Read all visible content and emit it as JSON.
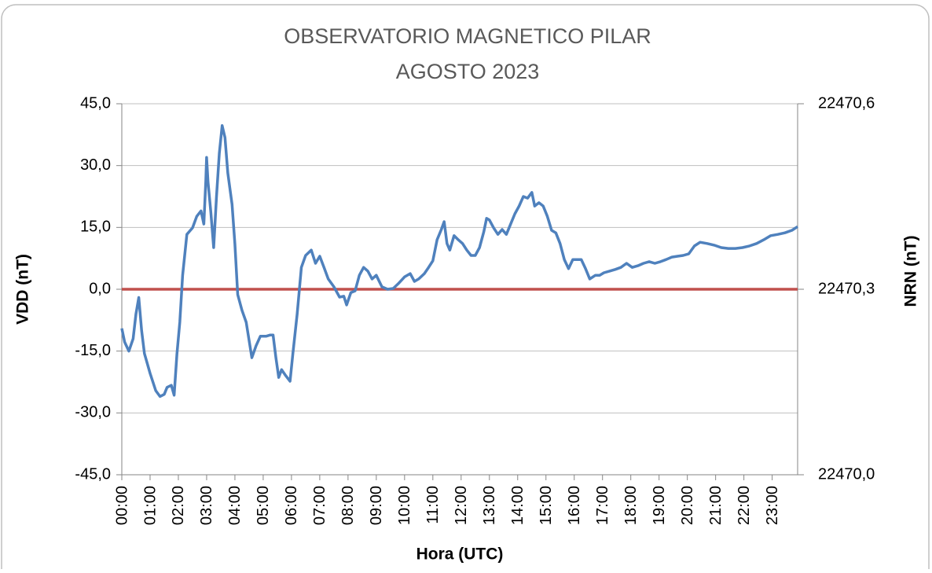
{
  "chart_data": {
    "type": "line",
    "title": [
      "OBSERVATORIO MAGNETICO PILAR",
      "AGOSTO 2023"
    ],
    "x_label": "Hora (UTC)",
    "y_label": "VDD (nT)",
    "y2_label": "NRN (nT)",
    "xlim": [
      0,
      23.9
    ],
    "xticks": [
      {
        "value": 0,
        "label": "00:00"
      },
      {
        "value": 1,
        "label": "01:00"
      },
      {
        "value": 2,
        "label": "02:00"
      },
      {
        "value": 3,
        "label": "03:00"
      },
      {
        "value": 4,
        "label": "04:00"
      },
      {
        "value": 5,
        "label": "05:00"
      },
      {
        "value": 6,
        "label": "06:00"
      },
      {
        "value": 7,
        "label": "07:00"
      },
      {
        "value": 8,
        "label": "08:00"
      },
      {
        "value": 9,
        "label": "09:00"
      },
      {
        "value": 10,
        "label": "10:00"
      },
      {
        "value": 11,
        "label": "11:00"
      },
      {
        "value": 12,
        "label": "12:00"
      },
      {
        "value": 13,
        "label": "13:00"
      },
      {
        "value": 14,
        "label": "14:00"
      },
      {
        "value": 15,
        "label": "15:00"
      },
      {
        "value": 16,
        "label": "16:00"
      },
      {
        "value": 17,
        "label": "17:00"
      },
      {
        "value": 18,
        "label": "18:00"
      },
      {
        "value": 19,
        "label": "19:00"
      },
      {
        "value": 20,
        "label": "20:00"
      },
      {
        "value": 21,
        "label": "21:00"
      },
      {
        "value": 22,
        "label": "22:00"
      },
      {
        "value": 23,
        "label": "23:00"
      }
    ],
    "ylim": [
      -45,
      45
    ],
    "yticks": [
      {
        "value": -45,
        "label": "-45,0"
      },
      {
        "value": -30,
        "label": "-30,0"
      },
      {
        "value": -15,
        "label": "-15,0"
      },
      {
        "value": 0,
        "label": "0,0"
      },
      {
        "value": 15,
        "label": "15,0"
      },
      {
        "value": 30,
        "label": "30,0"
      },
      {
        "value": 45,
        "label": "45,0"
      }
    ],
    "y2lim": [
      22470.0,
      22470.6
    ],
    "y2ticks": [
      {
        "value": 22470.0,
        "label": "22470,0"
      },
      {
        "value": 22470.3,
        "label": "22470,3"
      },
      {
        "value": 22470.6,
        "label": "22470,6"
      }
    ],
    "grid": true,
    "series": [
      {
        "name": "VDD",
        "color": "#4f81bd",
        "x": [
          0,
          0.1,
          0.25,
          0.4,
          0.5,
          0.6,
          0.7,
          0.8,
          1.0,
          1.2,
          1.35,
          1.5,
          1.6,
          1.75,
          1.85,
          1.95,
          2.05,
          2.15,
          2.3,
          2.5,
          2.65,
          2.8,
          2.9,
          2.97,
          3.0,
          3.05,
          3.15,
          3.25,
          3.35,
          3.45,
          3.55,
          3.65,
          3.75,
          3.9,
          4.0,
          4.1,
          4.25,
          4.4,
          4.6,
          4.75,
          4.9,
          5.1,
          5.25,
          5.35,
          5.45,
          5.55,
          5.65,
          5.8,
          5.95,
          6.05,
          6.2,
          6.35,
          6.5,
          6.7,
          6.85,
          7.0,
          7.15,
          7.3,
          7.5,
          7.7,
          7.85,
          7.95,
          8.1,
          8.25,
          8.4,
          8.55,
          8.7,
          8.85,
          9.0,
          9.2,
          9.4,
          9.6,
          9.8,
          10.0,
          10.2,
          10.35,
          10.5,
          10.7,
          10.85,
          11.0,
          11.15,
          11.3,
          11.4,
          11.5,
          11.6,
          11.75,
          11.9,
          12.05,
          12.2,
          12.35,
          12.5,
          12.65,
          12.8,
          12.9,
          13.0,
          13.15,
          13.3,
          13.45,
          13.6,
          13.75,
          13.9,
          14.05,
          14.2,
          14.35,
          14.5,
          14.6,
          14.75,
          14.9,
          15.05,
          15.2,
          15.35,
          15.5,
          15.65,
          15.8,
          15.95,
          16.1,
          16.25,
          16.4,
          16.55,
          16.75,
          16.9,
          17.05,
          17.25,
          17.45,
          17.65,
          17.85,
          18.05,
          18.25,
          18.45,
          18.65,
          18.85,
          19.05,
          19.25,
          19.45,
          19.65,
          19.85,
          20.05,
          20.25,
          20.45,
          20.7,
          20.95,
          21.2,
          21.45,
          21.7,
          21.95,
          22.2,
          22.45,
          22.7,
          22.95,
          23.2,
          23.45,
          23.7,
          23.9
        ],
        "values": [
          -9.5,
          -12.8,
          -15,
          -12,
          -6,
          -2,
          -10,
          -15.6,
          -20.4,
          -24.6,
          -26,
          -25.5,
          -23.8,
          -23.3,
          -25.7,
          -15.6,
          -8,
          3.4,
          13.3,
          14.9,
          17.7,
          19,
          15.8,
          26.3,
          32,
          26,
          18.7,
          10.1,
          22.5,
          33,
          39.7,
          36.8,
          28.2,
          20.6,
          11,
          -1.3,
          -5.1,
          -8,
          -16.6,
          -13.7,
          -11.4,
          -11.4,
          -11.1,
          -11.1,
          -16.6,
          -21.4,
          -19.5,
          -21,
          -22.3,
          -15.6,
          -6.1,
          5.3,
          8.2,
          9.5,
          6.3,
          8,
          5.3,
          2.5,
          0.6,
          -1.9,
          -1.7,
          -3.8,
          -0.8,
          -0.4,
          3.4,
          5.3,
          4.4,
          2.5,
          3.4,
          0.6,
          0,
          0.2,
          1.5,
          3,
          3.8,
          1.9,
          2.5,
          3.8,
          5.3,
          6.9,
          12,
          14.5,
          16.4,
          11.1,
          9.5,
          13,
          12,
          11.1,
          9.5,
          8.2,
          8.2,
          10.1,
          13.9,
          17.2,
          16.8,
          14.9,
          13.3,
          14.5,
          13.3,
          15.8,
          18.3,
          20.2,
          22.5,
          22.1,
          23.5,
          20.2,
          21,
          20.2,
          17.7,
          14.3,
          13.7,
          11.1,
          7.2,
          5,
          7.2,
          7.2,
          7.2,
          5,
          2.5,
          3.4,
          3.4,
          4,
          4.4,
          4.8,
          5.3,
          6.3,
          5.3,
          5.7,
          6.3,
          6.7,
          6.3,
          6.7,
          7.2,
          7.8,
          8,
          8.2,
          8.6,
          10.5,
          11.4,
          11.1,
          10.7,
          10.1,
          9.9,
          9.9,
          10.1,
          10.5,
          11.1,
          12,
          13,
          13.3,
          13.7,
          14.3,
          15.2
        ]
      },
      {
        "name": "NRN",
        "color": "#c0504d",
        "axis": "y2",
        "x": [
          0,
          23.9
        ],
        "values": [
          22470.3,
          22470.3
        ]
      }
    ]
  }
}
